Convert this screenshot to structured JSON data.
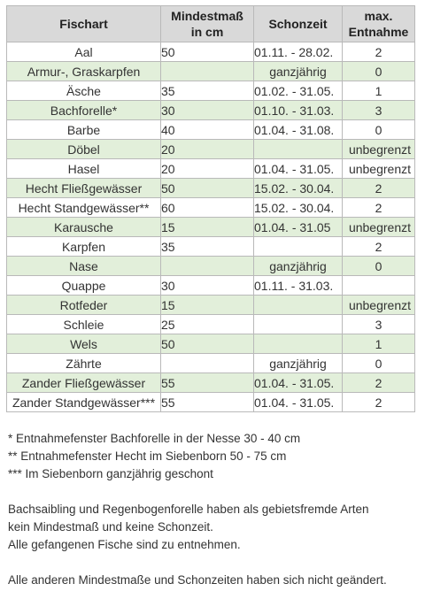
{
  "headers": {
    "name": "Fischart",
    "size_line1": "Mindestmaß",
    "size_line2": "in cm",
    "season": "Schonzeit",
    "max_line1": "max.",
    "max_line2": "Entnahme"
  },
  "rows": [
    {
      "name": "Aal",
      "size": "50",
      "season": "01.11. - 28.02.",
      "max": "2"
    },
    {
      "name": "Armur-, Graskarpfen",
      "size": "",
      "season": "ganzjährig",
      "max": "0"
    },
    {
      "name": "Äsche",
      "size": "35",
      "season": "01.02. - 31.05.",
      "max": "1"
    },
    {
      "name": "Bachforelle*",
      "size": "30",
      "season": "01.10. - 31.03.",
      "max": "3"
    },
    {
      "name": "Barbe",
      "size": "40",
      "season": "01.04. - 31.08.",
      "max": "0"
    },
    {
      "name": "Döbel",
      "size": "20",
      "season": "",
      "max": "unbegrenzt"
    },
    {
      "name": "Hasel",
      "size": "20",
      "season": "01.04. - 31.05.",
      "max": "unbegrenzt"
    },
    {
      "name": "Hecht Fließgewässer",
      "size": "50",
      "season": "15.02. - 30.04.",
      "max": "2"
    },
    {
      "name": "Hecht Standgewässer**",
      "size": "60",
      "season": "15.02. - 30.04.",
      "max": "2"
    },
    {
      "name": "Karausche",
      "size": "15",
      "season": "01.04. - 31.05",
      "max": "unbegrenzt"
    },
    {
      "name": "Karpfen",
      "size": "35",
      "season": "",
      "max": "2"
    },
    {
      "name": "Nase",
      "size": "",
      "season": "ganzjährig",
      "max": "0"
    },
    {
      "name": "Quappe",
      "size": "30",
      "season": "01.11. - 31.03.",
      "max": ""
    },
    {
      "name": "Rotfeder",
      "size": "15",
      "season": "",
      "max": "unbegrenzt"
    },
    {
      "name": "Schleie",
      "size": "25",
      "season": "",
      "max": "3"
    },
    {
      "name": "Wels",
      "size": "50",
      "season": "",
      "max": "1"
    },
    {
      "name": "Zährte",
      "size": "",
      "season": "ganzjährig",
      "max": "0"
    },
    {
      "name": "Zander Fließgewässer",
      "size": "55",
      "season": "01.04. - 31.05.",
      "max": "2"
    },
    {
      "name": "Zander Standgewässer***",
      "size": "55",
      "season": "01.04. - 31.05.",
      "max": "2"
    }
  ],
  "notes": {
    "fn1": "*  Entnahmefenster Bachforelle in der Nesse  30 - 40 cm",
    "fn2": "** Entnahmefenster Hecht im Siebenborn  50 - 75 cm",
    "fn3": "*** Im Siebenborn ganzjährig geschont",
    "p1_line1": "Bachsaibling und Regenbogenforelle haben als gebietsfremde Arten",
    "p1_line2": "kein Mindestmaß und keine Schonzeit.",
    "p1_line3": "Alle gefangenen Fische sind zu entnehmen.",
    "p2": "Alle anderen Mindestmaße und Schonzeiten haben sich nicht geändert."
  }
}
